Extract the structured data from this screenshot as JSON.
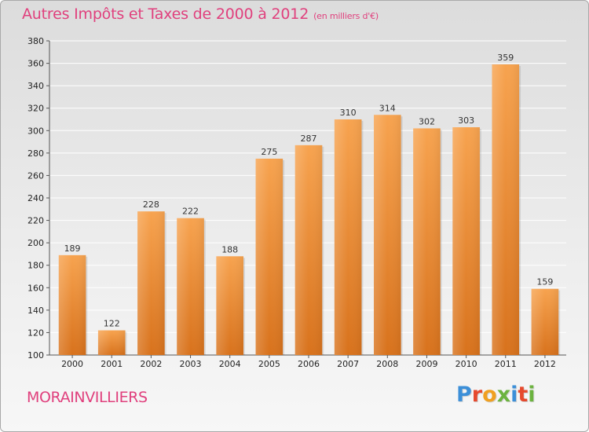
{
  "title": "Autres Impôts et Taxes de 2000 à 2012",
  "subtitle": "(en milliers d'€)",
  "commune": "MORAINVILLIERS",
  "logo_text": "Proxiti",
  "colors": {
    "title": "#e0407d",
    "bar_top": "#f7a34f",
    "bar_bottom": "#d8721c",
    "grid": "#ffffff",
    "logo": [
      "#3c8fd8",
      "#e6492d",
      "#f0a020",
      "#6cb33f",
      "#3c8fd8",
      "#e6492d",
      "#6cb33f"
    ]
  },
  "chart_data": {
    "type": "bar",
    "title": "Autres Impôts et Taxes de 2000 à 2012",
    "subtitle": "(en milliers d'€)",
    "xlabel": "",
    "ylabel": "",
    "categories": [
      "2000",
      "2001",
      "2002",
      "2003",
      "2004",
      "2005",
      "2006",
      "2007",
      "2008",
      "2009",
      "2010",
      "2011",
      "2012"
    ],
    "values": [
      189,
      122,
      228,
      222,
      188,
      275,
      287,
      310,
      314,
      302,
      303,
      359,
      159
    ],
    "ylim": [
      100,
      380
    ],
    "yticks": [
      100,
      120,
      140,
      160,
      180,
      200,
      220,
      240,
      260,
      280,
      300,
      320,
      340,
      360,
      380
    ],
    "grid": true,
    "legend": "none"
  }
}
